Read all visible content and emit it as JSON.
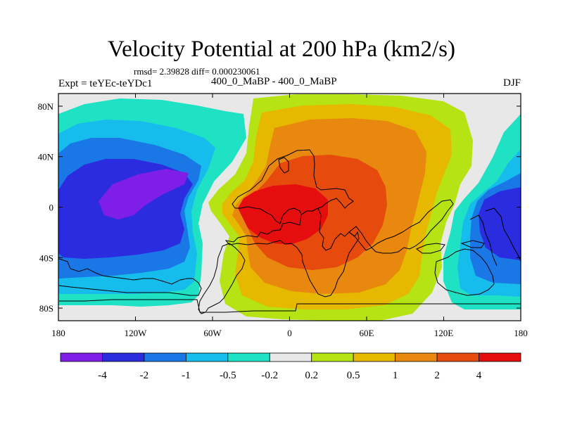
{
  "chart_data": {
    "type": "filled-contour-map",
    "title": "Velocity Potential at 200 hPa (km2/s)",
    "stats": "rmsd= 2.39828 diff= 0.000230061",
    "experiment": "Expt = teYEc-teYDc1",
    "subtitle": "400_0_MaBP - 400_0_MaBP",
    "season": "DJF",
    "xlim": [
      -180,
      180
    ],
    "ylim": [
      -90,
      90
    ],
    "x_ticks": [
      {
        "value": -180,
        "label": "180"
      },
      {
        "value": -120,
        "label": "120W"
      },
      {
        "value": -60,
        "label": "60W"
      },
      {
        "value": 0,
        "label": "0"
      },
      {
        "value": 60,
        "label": "60E"
      },
      {
        "value": 120,
        "label": "120E"
      },
      {
        "value": 180,
        "label": "180"
      }
    ],
    "y_ticks": [
      {
        "value": 80,
        "label": "80N"
      },
      {
        "value": 40,
        "label": "40N"
      },
      {
        "value": 0,
        "label": "0"
      },
      {
        "value": -40,
        "label": "40S"
      },
      {
        "value": -80,
        "label": "80S"
      }
    ],
    "contour_levels": [
      {
        "value": -4,
        "label": "-4"
      },
      {
        "value": -2,
        "label": "-2"
      },
      {
        "value": -1,
        "label": "-1"
      },
      {
        "value": -0.5,
        "label": "-0.5"
      },
      {
        "value": -0.2,
        "label": "-0.2"
      },
      {
        "value": 0.2,
        "label": "0.2"
      },
      {
        "value": 0.5,
        "label": "0.5"
      },
      {
        "value": 1,
        "label": "1"
      },
      {
        "value": 2,
        "label": "2"
      },
      {
        "value": 4,
        "label": "4"
      }
    ],
    "colors": [
      "#7f1ee6",
      "#2b2ce0",
      "#1a78e6",
      "#16bcec",
      "#1fe2c4",
      "#e8e8e8",
      "#b5e313",
      "#e6b800",
      "#e8880e",
      "#e64a0c",
      "#e50d0d"
    ],
    "extrema": [
      {
        "name": "min-pacific",
        "lon": -140,
        "lat": 5,
        "value": -4.5
      },
      {
        "name": "min-west-pacific",
        "lon": 180,
        "lat": 0,
        "value": -2.5
      },
      {
        "name": "max-africa",
        "lon": 15,
        "lat": -5,
        "value": 4.5
      }
    ]
  }
}
